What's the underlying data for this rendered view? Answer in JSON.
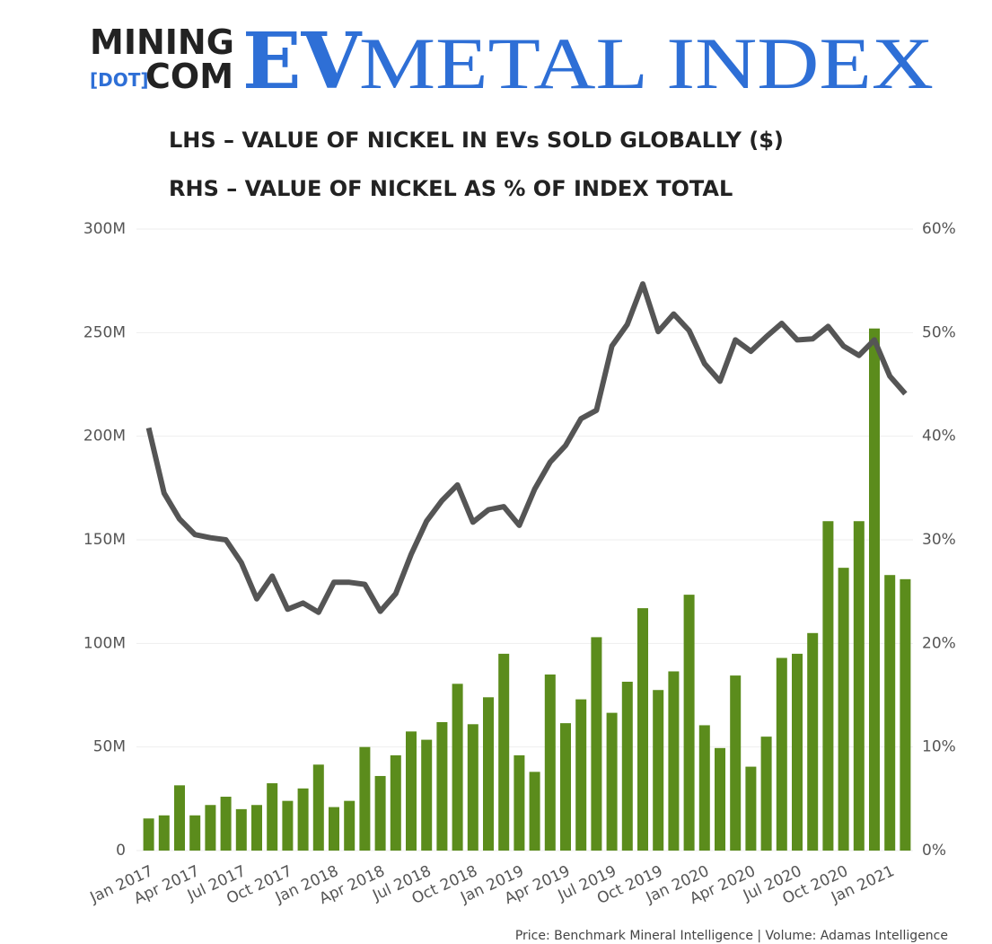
{
  "header": {
    "logo_top": "MINING",
    "logo_dot": "[DOT]",
    "logo_bottom": "COM",
    "brand": "EV",
    "name": "METAL INDEX"
  },
  "chart_data": {
    "type": "bar_line",
    "title_lines": [
      "LHS – VALUE OF NICKEL IN EVs SOLD GLOBALLY ($)",
      "RHS – VALUE OF NICKEL AS % OF INDEX TOTAL"
    ],
    "source": "Price: Benchmark Mineral Intelligence | Volume: Adamas Intelligence",
    "categories": [
      "Jan 2017",
      null,
      null,
      "Apr 2017",
      null,
      null,
      "Jul 2017",
      null,
      null,
      "Oct 2017",
      null,
      null,
      "Jan 2018",
      null,
      null,
      "Apr 2018",
      null,
      null,
      "Jul 2018",
      null,
      null,
      "Oct 2018",
      null,
      null,
      "Jan 2019",
      null,
      null,
      "Apr 2019",
      null,
      null,
      "Jul 2019",
      null,
      null,
      "Oct 2019",
      null,
      null,
      "Jan 2020",
      null,
      null,
      "Apr 2020",
      null,
      null,
      "Jul 2020",
      null,
      null,
      "Oct 2020",
      null,
      null,
      "Jan 2021",
      null
    ],
    "series": [
      {
        "type": "bar",
        "color": "#5b8c1c",
        "values": [
          15500000,
          17000000,
          31500000,
          17000000,
          22000000,
          26000000,
          20000000,
          22000000,
          32500000,
          24000000,
          30000000,
          41500000,
          21000000,
          24000000,
          50000000,
          36000000,
          46000000,
          57500000,
          53500000,
          62000000,
          80500000,
          61000000,
          74000000,
          95000000,
          46000000,
          38000000,
          85000000,
          61500000,
          73000000,
          103000000,
          66500000,
          81500000,
          117000000,
          77500000,
          86500000,
          123500000,
          60500000,
          49500000,
          84500000,
          40500000,
          55000000,
          93000000,
          95000000,
          105000000,
          159000000,
          136500000,
          159000000,
          252000000,
          133000000,
          131000000
        ]
      },
      {
        "type": "line",
        "axis": "y2",
        "color": "#555555",
        "values": [
          40.8,
          34.5,
          32,
          30.5,
          30.2,
          30,
          27.8,
          24.3,
          26.5,
          23.3,
          23.9,
          23,
          25.9,
          25.9,
          25.7,
          23.1,
          24.8,
          28.6,
          31.8,
          33.8,
          35.3,
          31.7,
          32.9,
          33.2,
          31.4,
          34.9,
          37.5,
          39.1,
          41.7,
          42.5,
          48.7,
          50.8,
          54.7,
          50.1,
          51.8,
          50.2,
          47,
          45.3,
          49.3,
          48.2,
          49.6,
          50.9,
          49.3,
          49.4,
          50.6,
          48.7,
          47.8,
          49.3,
          45.8,
          44.1
        ]
      }
    ],
    "ylim": [
      0,
      300000000
    ],
    "yticks": [
      0,
      {
        "value": 50000000,
        "label": "50M"
      },
      {
        "value": 100000000,
        "label": "100M"
      },
      {
        "value": 150000000,
        "label": "150M"
      },
      {
        "value": 200000000,
        "label": "200M"
      },
      {
        "value": 250000000,
        "label": "250M"
      },
      {
        "value": 300000000,
        "label": "300M"
      }
    ],
    "y2lim": [
      0,
      60
    ],
    "y2ticks": [
      {
        "value": 0,
        "label": "0%"
      },
      {
        "value": 10,
        "label": "10%"
      },
      {
        "value": 20,
        "label": "20%"
      },
      {
        "value": 30,
        "label": "30%"
      },
      {
        "value": 40,
        "label": "40%"
      },
      {
        "value": 50,
        "label": "50%"
      },
      {
        "value": 60,
        "label": "60%"
      }
    ],
    "grid": true
  }
}
